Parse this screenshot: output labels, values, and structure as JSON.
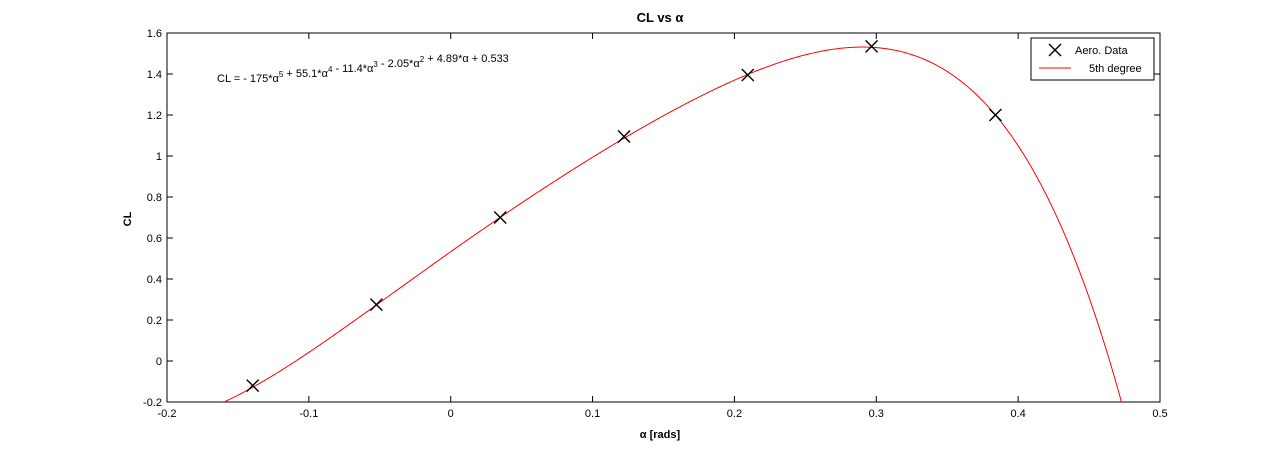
{
  "chart_data": {
    "type": "line",
    "title": "CL vs α",
    "xlabel": "α [rads]",
    "ylabel": "CL",
    "xlim": [
      -0.2,
      0.5
    ],
    "ylim": [
      -0.2,
      1.6
    ],
    "xticks": [
      -0.2,
      -0.1,
      0,
      0.1,
      0.2,
      0.3,
      0.4,
      0.5
    ],
    "yticks": [
      -0.2,
      0,
      0.2,
      0.4,
      0.6,
      0.8,
      1,
      1.2,
      1.4,
      1.6
    ],
    "grid": false,
    "legend_position": "top-right",
    "annotation": {
      "parts": [
        {
          "t": "CL = - 175*α",
          "sup": "5"
        },
        {
          "t": " + 55.1*α",
          "sup": "4"
        },
        {
          "t": " - 11.4*α",
          "sup": "3"
        },
        {
          "t": " - 2.05*α",
          "sup": "2"
        },
        {
          "t": " + 4.89*α + 0.533",
          "sup": ""
        }
      ]
    },
    "series": [
      {
        "name": "Aero. Data",
        "kind": "scatter",
        "marker": "x",
        "color": "#000000",
        "x": [
          -0.1396,
          -0.0524,
          0.0349,
          0.1222,
          0.2094,
          0.2967,
          0.384
        ],
        "y": [
          -0.12,
          0.275,
          0.7,
          1.095,
          1.395,
          1.535,
          1.2
        ]
      },
      {
        "name": "5th degree",
        "kind": "line",
        "color": "#ff0000",
        "coefficients": [
          -175,
          55.1,
          -11.4,
          -2.05,
          4.89,
          0.533
        ],
        "x_range": [
          -0.16,
          0.475
        ]
      }
    ]
  }
}
